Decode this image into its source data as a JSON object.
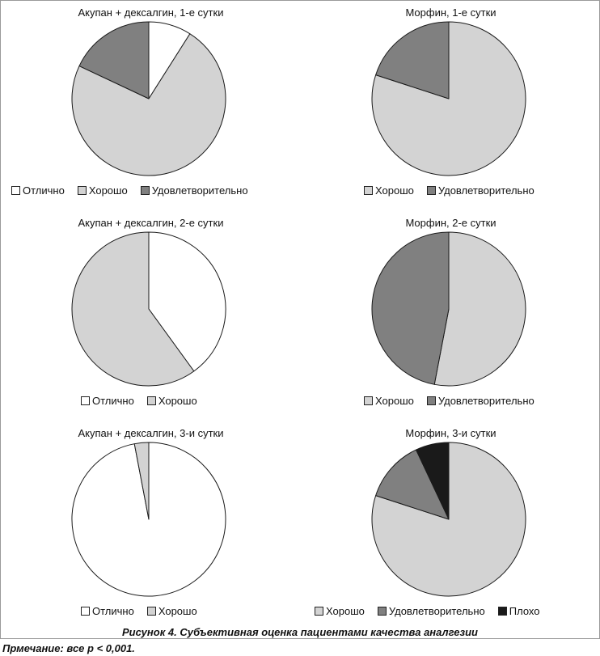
{
  "colors": {
    "Отлично": "#ffffff",
    "Хорошо": "#d3d3d3",
    "Удовлетворительно": "#808080",
    "Плохо": "#1a1a1a"
  },
  "chart_data": [
    {
      "type": "pie",
      "title": "Акупан + дексалгин, 1-е сутки",
      "labels": [
        "Отлично",
        "Хорошо",
        "Удовлетворительно"
      ],
      "values": [
        9,
        73,
        18
      ],
      "legend": [
        "Отлично",
        "Хорошо",
        "Удовлетворительно"
      ]
    },
    {
      "type": "pie",
      "title": "Морфин, 1-е сутки",
      "labels": [
        "Хорошо",
        "Удовлетворительно"
      ],
      "values": [
        80,
        20
      ],
      "legend": [
        "Хорошо",
        "Удовлетворительно"
      ]
    },
    {
      "type": "pie",
      "title": "Акупан + дексалгин, 2-е сутки",
      "labels": [
        "Отлично",
        "Хорошо"
      ],
      "values": [
        40,
        60
      ],
      "legend": [
        "Отлично",
        "Хорошо"
      ]
    },
    {
      "type": "pie",
      "title": "Морфин, 2-е сутки",
      "labels": [
        "Хорошо",
        "Удовлетворительно"
      ],
      "values": [
        53,
        47
      ],
      "legend": [
        "Хорошо",
        "Удовлетворительно"
      ]
    },
    {
      "type": "pie",
      "title": "Акупан + дексалгин, 3-и сутки",
      "labels": [
        "Отлично",
        "Хорошо"
      ],
      "values": [
        97,
        3
      ],
      "legend": [
        "Отлично",
        "Хорошо"
      ]
    },
    {
      "type": "pie",
      "title": "Морфин, 3-и сутки",
      "labels": [
        "Хорошо",
        "Удовлетворительно",
        "Плохо"
      ],
      "values": [
        80,
        13,
        7
      ],
      "legend": [
        "Хорошо",
        "Удовлетворительно",
        "Плохо"
      ]
    }
  ],
  "caption": "Рисунок 4. Субъективная оценка пациентами качества аналгезии",
  "note": "Прмечание: все р < 0,001."
}
